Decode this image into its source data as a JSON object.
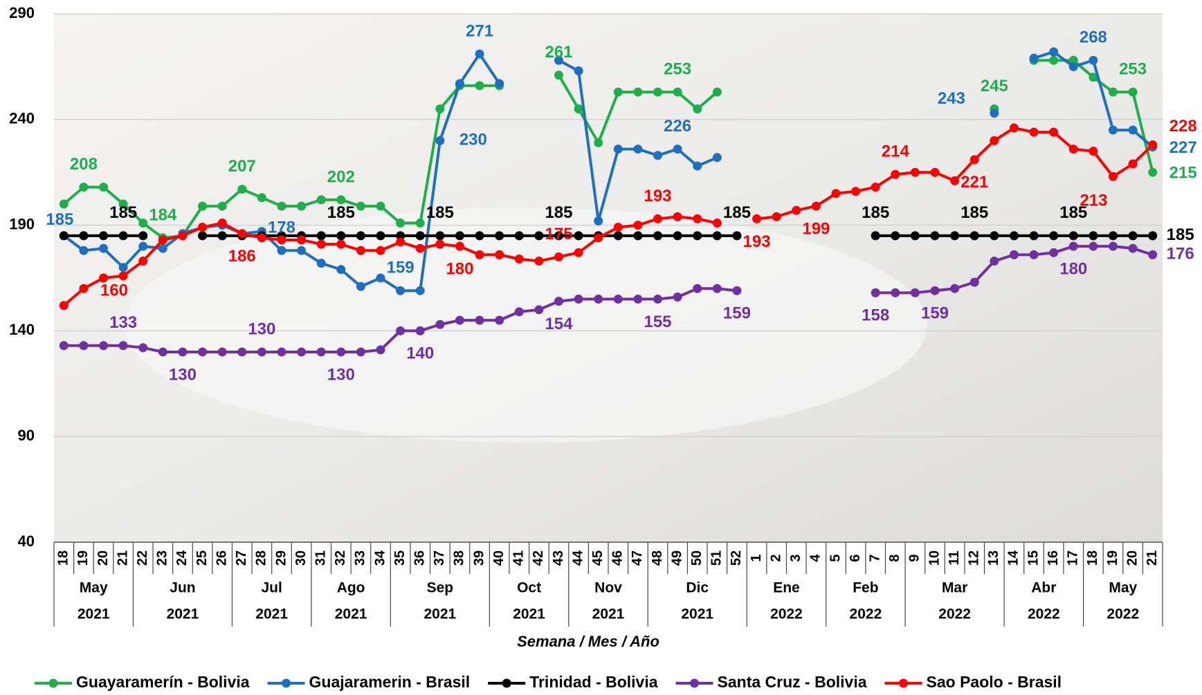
{
  "chart_data": {
    "type": "line",
    "x_label": "Semana / Mes / Año",
    "categories": [
      "18",
      "19",
      "20",
      "21",
      "22",
      "23",
      "24",
      "25",
      "26",
      "27",
      "28",
      "29",
      "30",
      "31",
      "32",
      "33",
      "34",
      "35",
      "36",
      "37",
      "38",
      "39",
      "40",
      "41",
      "42",
      "43",
      "44",
      "45",
      "46",
      "47",
      "48",
      "49",
      "50",
      "51",
      "52",
      "1",
      "2",
      "3",
      "4",
      "5",
      "6",
      "7",
      "8",
      "9",
      "10",
      "11",
      "12",
      "13",
      "14",
      "15",
      "16",
      "17",
      "18",
      "19",
      "20",
      "21"
    ],
    "category_months": [
      "May",
      null,
      null,
      null,
      "Jun",
      null,
      null,
      null,
      null,
      "Jul",
      null,
      null,
      null,
      "Ago",
      null,
      null,
      null,
      "Sep",
      null,
      null,
      null,
      null,
      "Oct",
      null,
      null,
      null,
      "Nov",
      null,
      null,
      null,
      "Dic",
      null,
      null,
      null,
      null,
      "Ene",
      null,
      null,
      null,
      "Feb",
      null,
      null,
      null,
      "Mar",
      null,
      null,
      null,
      null,
      "Abr",
      null,
      null,
      null,
      "May",
      null,
      null,
      null
    ],
    "category_years": [
      "2021",
      null,
      null,
      null,
      "2021",
      null,
      null,
      null,
      null,
      "2021",
      null,
      null,
      null,
      "2021",
      null,
      null,
      null,
      "2021",
      null,
      null,
      null,
      null,
      "2021",
      null,
      null,
      null,
      "2021",
      null,
      null,
      null,
      "2021",
      null,
      null,
      null,
      null,
      "2022",
      null,
      null,
      null,
      "2022",
      null,
      null,
      null,
      "2022",
      null,
      null,
      null,
      null,
      "2022",
      null,
      null,
      null,
      "2022",
      null,
      null,
      null
    ],
    "ylim": [
      40,
      290
    ],
    "yticks": [
      40,
      90,
      140,
      190,
      240,
      290
    ],
    "grid": true,
    "series": [
      {
        "name": "Guayaramerín - Bolivia",
        "color": "#1fae4a",
        "values": [
          200,
          208,
          208,
          200,
          191,
          184,
          185,
          199,
          199,
          207,
          203,
          199,
          199,
          202,
          202,
          199,
          199,
          191,
          191,
          245,
          256,
          256,
          256,
          null,
          null,
          261,
          245,
          229,
          253,
          253,
          253,
          253,
          245,
          253,
          null,
          null,
          null,
          null,
          null,
          null,
          null,
          null,
          null,
          null,
          null,
          null,
          null,
          245,
          null,
          268,
          268,
          268,
          260,
          253,
          253,
          215
        ],
        "value_labels": [
          null,
          "208",
          null,
          null,
          null,
          "184",
          null,
          null,
          null,
          "207",
          null,
          null,
          null,
          null,
          "202",
          null,
          null,
          null,
          null,
          null,
          null,
          null,
          null,
          null,
          null,
          "261",
          null,
          null,
          null,
          null,
          null,
          "253",
          null,
          null,
          null,
          null,
          null,
          null,
          null,
          null,
          null,
          null,
          null,
          null,
          null,
          null,
          null,
          "245",
          null,
          null,
          null,
          null,
          null,
          null,
          "253",
          "215"
        ]
      },
      {
        "name": "Guajaramerin - Brasil",
        "color": "#1f6fbf",
        "values": [
          185,
          178,
          179,
          170,
          180,
          179,
          186,
          189,
          190,
          186,
          187,
          178,
          178,
          172,
          169,
          161,
          165,
          159,
          159,
          230,
          257,
          271,
          257,
          null,
          null,
          268,
          263,
          192,
          226,
          226,
          223,
          226,
          218,
          222,
          null,
          null,
          null,
          null,
          null,
          null,
          null,
          null,
          null,
          null,
          null,
          null,
          null,
          243,
          null,
          269,
          272,
          265,
          268,
          235,
          235,
          227
        ],
        "value_labels": [
          "185",
          null,
          null,
          null,
          null,
          null,
          null,
          null,
          null,
          null,
          null,
          "178",
          null,
          null,
          null,
          null,
          null,
          "159",
          null,
          "230",
          null,
          "271",
          null,
          null,
          null,
          null,
          null,
          null,
          null,
          null,
          null,
          "226",
          null,
          null,
          null,
          null,
          null,
          null,
          null,
          null,
          null,
          null,
          null,
          null,
          null,
          null,
          null,
          "243",
          null,
          null,
          null,
          null,
          "268",
          null,
          null,
          "227"
        ]
      },
      {
        "name": "Trinidad - Bolivia",
        "color": "#000000",
        "values": [
          185,
          185,
          185,
          185,
          185,
          null,
          null,
          185,
          185,
          185,
          185,
          185,
          185,
          185,
          185,
          185,
          185,
          185,
          185,
          185,
          185,
          185,
          185,
          185,
          185,
          185,
          185,
          185,
          185,
          185,
          185,
          185,
          185,
          185,
          185,
          null,
          null,
          null,
          null,
          null,
          null,
          185,
          185,
          185,
          185,
          185,
          185,
          185,
          185,
          185,
          185,
          185,
          185,
          185,
          185,
          185
        ],
        "value_labels": [
          null,
          null,
          null,
          "185",
          null,
          null,
          null,
          null,
          null,
          null,
          null,
          null,
          null,
          null,
          "185",
          null,
          null,
          null,
          null,
          "185",
          null,
          null,
          null,
          null,
          null,
          "185",
          null,
          null,
          null,
          null,
          null,
          null,
          null,
          null,
          "185",
          null,
          null,
          null,
          null,
          null,
          null,
          "185",
          null,
          null,
          null,
          null,
          "185",
          null,
          null,
          null,
          null,
          "185",
          null,
          null,
          null,
          "185"
        ]
      },
      {
        "name": "Santa Cruz - Bolivia",
        "color": "#7030a0",
        "values": [
          133,
          133,
          133,
          133,
          132,
          130,
          130,
          130,
          130,
          130,
          130,
          130,
          130,
          130,
          130,
          130,
          131,
          140,
          140,
          143,
          145,
          145,
          145,
          149,
          150,
          154,
          155,
          155,
          155,
          155,
          155,
          156,
          160,
          160,
          159,
          null,
          null,
          null,
          null,
          null,
          null,
          158,
          158,
          158,
          159,
          160,
          163,
          173,
          176,
          176,
          177,
          180,
          180,
          180,
          179,
          176
        ],
        "value_labels": [
          null,
          null,
          null,
          "133",
          null,
          null,
          "130",
          null,
          null,
          null,
          "130",
          null,
          null,
          null,
          "130",
          null,
          null,
          null,
          "140",
          null,
          null,
          null,
          null,
          null,
          null,
          "154",
          null,
          null,
          null,
          null,
          "155",
          null,
          null,
          null,
          "159",
          null,
          null,
          null,
          null,
          null,
          null,
          "158",
          null,
          null,
          "159",
          null,
          null,
          null,
          null,
          null,
          null,
          "180",
          null,
          null,
          null,
          "176"
        ]
      },
      {
        "name": "Sao Paolo - Brasil",
        "color": "#ff0000",
        "values": [
          152,
          160,
          165,
          166,
          173,
          183,
          185,
          189,
          191,
          186,
          184,
          183,
          183,
          181,
          181,
          178,
          178,
          182,
          179,
          181,
          180,
          176,
          176,
          174,
          173,
          175,
          177,
          184,
          189,
          190,
          193,
          194,
          193,
          191,
          null,
          193,
          194,
          197,
          199,
          205,
          206,
          208,
          214,
          215,
          215,
          211,
          221,
          230,
          236,
          234,
          234,
          226,
          225,
          213,
          219,
          228
        ],
        "value_labels": [
          null,
          "160",
          null,
          null,
          null,
          null,
          null,
          null,
          null,
          "186",
          null,
          null,
          null,
          null,
          null,
          null,
          null,
          null,
          null,
          null,
          "180",
          null,
          null,
          null,
          null,
          "175",
          null,
          null,
          null,
          null,
          "193",
          null,
          null,
          null,
          null,
          "193",
          null,
          null,
          "199",
          null,
          null,
          null,
          "214",
          null,
          null,
          null,
          "221",
          null,
          null,
          null,
          null,
          null,
          null,
          "213",
          null,
          "228"
        ]
      }
    ]
  }
}
